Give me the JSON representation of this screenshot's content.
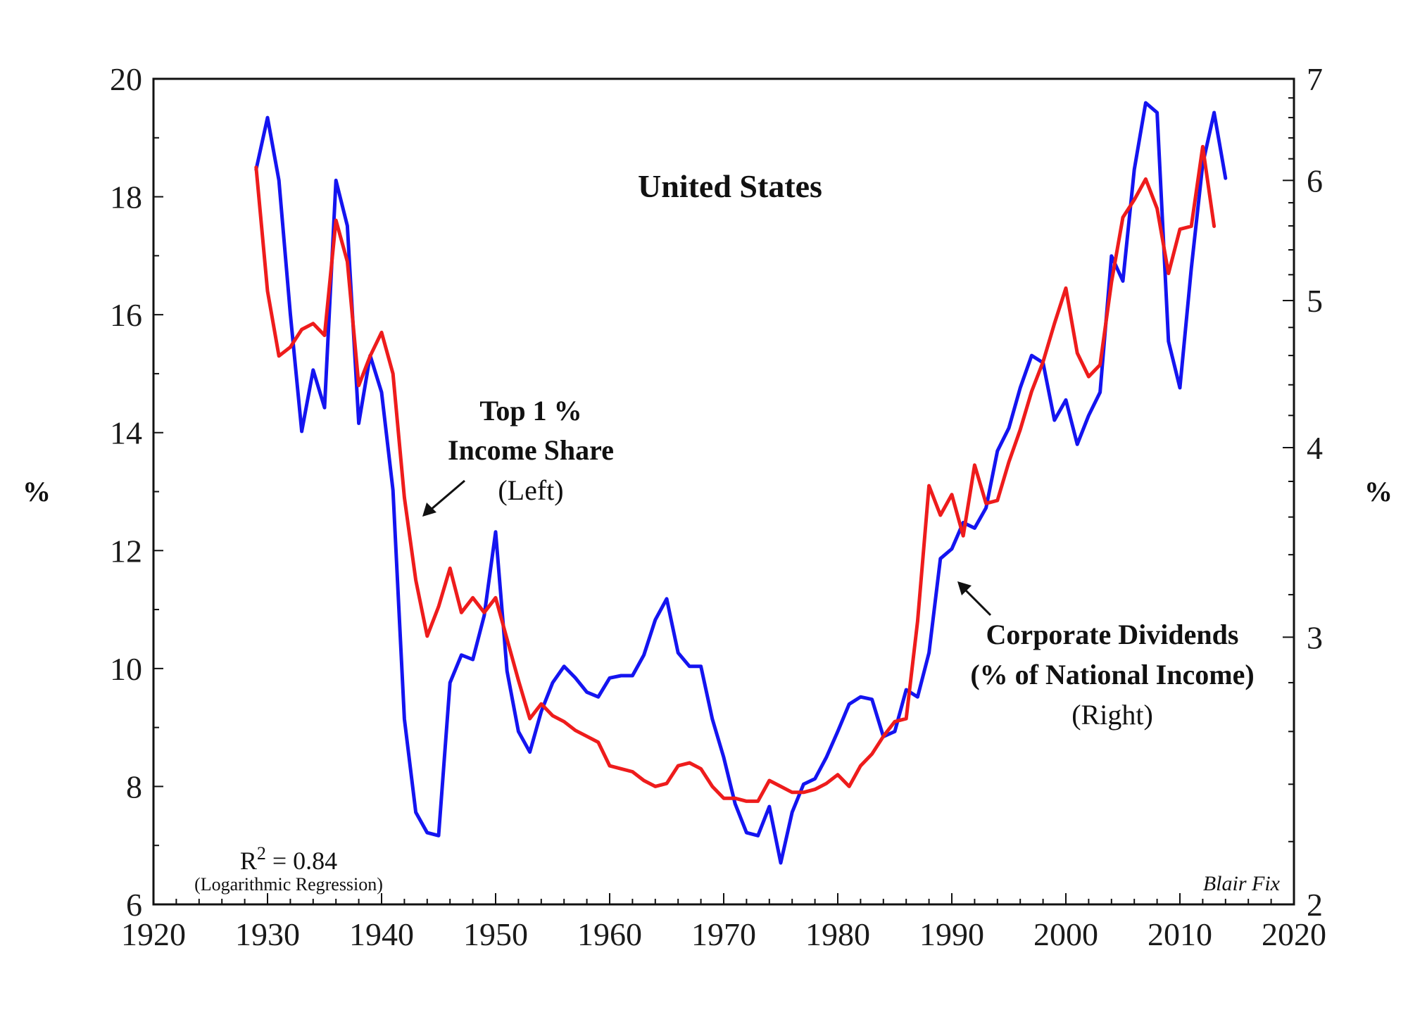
{
  "chart_data": {
    "type": "line",
    "title": "United States",
    "left_axis": {
      "unit_label": "%",
      "range": [
        6,
        20
      ],
      "ticks": [
        "6",
        "8",
        "10",
        "12",
        "14",
        "16",
        "18",
        "20"
      ]
    },
    "right_axis": {
      "unit_label": "%",
      "scale": "log",
      "range": [
        2,
        7
      ],
      "ticks": [
        "2",
        "3",
        "4",
        "5",
        "6",
        "7"
      ]
    },
    "x_axis": {
      "range": [
        1920,
        2020
      ],
      "ticks": [
        "1920",
        "1930",
        "1940",
        "1950",
        "1960",
        "1970",
        "1980",
        "1990",
        "2000",
        "2010",
        "2020"
      ]
    },
    "series": [
      {
        "name": "Top 1 % Income Share",
        "axis": "left",
        "color": "#ee1c1c",
        "x": [
          1929,
          1930,
          1931,
          1932,
          1933,
          1934,
          1935,
          1936,
          1937,
          1938,
          1939,
          1940,
          1941,
          1942,
          1943,
          1944,
          1945,
          1946,
          1947,
          1948,
          1949,
          1950,
          1951,
          1952,
          1953,
          1954,
          1955,
          1956,
          1957,
          1958,
          1959,
          1960,
          1961,
          1962,
          1963,
          1964,
          1965,
          1966,
          1967,
          1968,
          1969,
          1970,
          1971,
          1972,
          1973,
          1974,
          1975,
          1976,
          1977,
          1978,
          1979,
          1980,
          1981,
          1982,
          1983,
          1984,
          1985,
          1986,
          1987,
          1988,
          1989,
          1990,
          1991,
          1992,
          1993,
          1994,
          1995,
          1996,
          1997,
          1998,
          1999,
          2000,
          2001,
          2002,
          2003,
          2004,
          2005,
          2006,
          2007,
          2008,
          2009,
          2010,
          2011,
          2012,
          2013
        ],
        "y": [
          18.5,
          16.4,
          15.3,
          15.45,
          15.75,
          15.85,
          15.65,
          17.6,
          16.9,
          14.8,
          15.3,
          15.7,
          15.0,
          12.9,
          11.5,
          10.55,
          11.05,
          11.7,
          10.95,
          11.2,
          10.95,
          11.2,
          10.5,
          9.8,
          9.15,
          9.4,
          9.2,
          9.1,
          8.95,
          8.85,
          8.75,
          8.35,
          8.3,
          8.25,
          8.1,
          8.0,
          8.05,
          8.35,
          8.4,
          8.3,
          8.0,
          7.8,
          7.8,
          7.75,
          7.75,
          8.1,
          8.0,
          7.9,
          7.9,
          7.95,
          8.05,
          8.2,
          8.0,
          8.35,
          8.55,
          8.85,
          9.1,
          9.15,
          10.8,
          13.1,
          12.6,
          12.95,
          12.25,
          13.45,
          12.8,
          12.85,
          13.5,
          14.05,
          14.7,
          15.2,
          15.85,
          16.45,
          15.35,
          14.95,
          15.15,
          16.55,
          17.65,
          17.95,
          18.3,
          17.8,
          16.7,
          17.45,
          17.5,
          18.85,
          17.5
        ]
      },
      {
        "name": "Corporate Dividends (% of National Income)",
        "axis": "right",
        "color": "#1414f0",
        "x": [
          1929,
          1930,
          1931,
          1932,
          1933,
          1934,
          1935,
          1936,
          1937,
          1938,
          1939,
          1940,
          1941,
          1942,
          1943,
          1944,
          1945,
          1946,
          1947,
          1948,
          1949,
          1950,
          1951,
          1952,
          1953,
          1954,
          1955,
          1956,
          1957,
          1958,
          1959,
          1960,
          1961,
          1962,
          1963,
          1964,
          1965,
          1966,
          1967,
          1968,
          1969,
          1970,
          1971,
          1972,
          1973,
          1974,
          1975,
          1976,
          1977,
          1978,
          1979,
          1980,
          1981,
          1982,
          1983,
          1984,
          1985,
          1986,
          1987,
          1988,
          1989,
          1990,
          1991,
          1992,
          1993,
          1994,
          1995,
          1996,
          1997,
          1998,
          1999,
          2000,
          2001,
          2002,
          2003,
          2004,
          2005,
          2006,
          2007,
          2008,
          2009,
          2010,
          2011,
          2012,
          2013,
          2014
        ],
        "y": [
          6.1,
          6.6,
          6.0,
          4.9,
          4.1,
          4.5,
          4.25,
          6.0,
          5.6,
          4.15,
          4.6,
          4.35,
          3.75,
          2.65,
          2.3,
          2.23,
          2.22,
          2.8,
          2.92,
          2.9,
          3.1,
          3.52,
          2.85,
          2.6,
          2.52,
          2.68,
          2.8,
          2.87,
          2.82,
          2.76,
          2.74,
          2.82,
          2.83,
          2.83,
          2.92,
          3.08,
          3.18,
          2.93,
          2.87,
          2.87,
          2.65,
          2.5,
          2.33,
          2.23,
          2.22,
          2.32,
          2.13,
          2.3,
          2.4,
          2.42,
          2.5,
          2.6,
          2.71,
          2.74,
          2.73,
          2.58,
          2.6,
          2.77,
          2.74,
          2.93,
          3.38,
          3.43,
          3.57,
          3.54,
          3.65,
          3.98,
          4.12,
          4.38,
          4.6,
          4.55,
          4.17,
          4.3,
          4.02,
          4.2,
          4.35,
          5.35,
          5.15,
          6.1,
          6.75,
          6.65,
          4.7,
          4.38,
          5.25,
          6.15,
          6.65,
          6.02
        ]
      }
    ],
    "annotations": {
      "series1_line1": "Top 1 %",
      "series1_line2": "Income Share",
      "series1_line3": "(Left)",
      "series2_line1": "Corporate Dividends",
      "series2_line2": "(% of National Income)",
      "series2_line3": "(Right)",
      "r2_prefix": "R",
      "r2_exponent": "2",
      "r2_value": " = 0.84",
      "regression_note": "(Logarithmic Regression)",
      "credit": "Blair Fix"
    }
  }
}
